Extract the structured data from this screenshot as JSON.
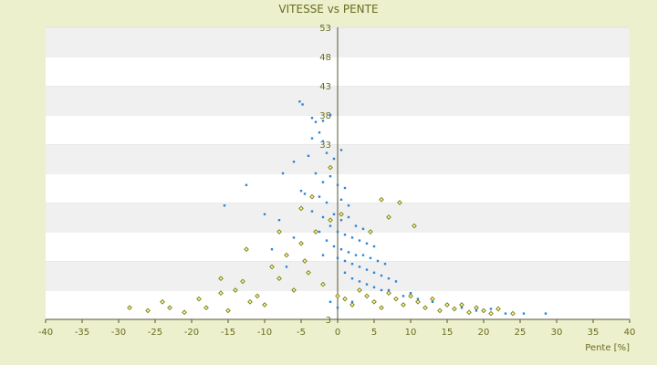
{
  "chart_data": {
    "type": "scatter",
    "title": "VITESSE vs PENTE",
    "xlabel": "Pente [%]",
    "ylabel": "",
    "xlim": [
      -40,
      40
    ],
    "ylim": [
      3,
      53
    ],
    "x_ticks": [
      -40,
      -35,
      -30,
      -25,
      -20,
      -15,
      -10,
      -5,
      0,
      5,
      10,
      15,
      20,
      25,
      30,
      35,
      40
    ],
    "y_ticks": [
      3,
      8,
      13,
      18,
      23,
      28,
      33,
      38,
      43,
      48,
      53
    ],
    "y_tick_labels_shown": [
      "3",
      "",
      "",
      "",
      "",
      "",
      "33",
      "38",
      "43",
      "48",
      "53"
    ],
    "grid": "horizontal alternating bands",
    "legend": "none",
    "colors": {
      "background": "#ecf0cd",
      "band_light": "#ffffff",
      "band_dark": "#f0f0f0",
      "text": "#6b6b1e",
      "axis": "#555533"
    },
    "series": [
      {
        "color": "#2b86d8",
        "marker": "small dot",
        "points": [
          [
            -5.2,
            40.3
          ],
          [
            -4.8,
            39.8
          ],
          [
            -3.5,
            37.5
          ],
          [
            -3.0,
            36.8
          ],
          [
            -2.5,
            35.0
          ],
          [
            -2.0,
            33.5
          ],
          [
            -4.0,
            31.0
          ],
          [
            -6.0,
            30.0
          ],
          [
            -1.5,
            31.5
          ],
          [
            -0.5,
            30.5
          ],
          [
            0.5,
            32.0
          ],
          [
            -3.0,
            28.0
          ],
          [
            -2.0,
            26.5
          ],
          [
            -1.0,
            27.5
          ],
          [
            0.0,
            26.0
          ],
          [
            1.0,
            25.5
          ],
          [
            -4.5,
            24.5
          ],
          [
            -2.5,
            24.0
          ],
          [
            -1.5,
            23.0
          ],
          [
            0.5,
            23.5
          ],
          [
            1.5,
            22.5
          ],
          [
            -12.5,
            26.0
          ],
          [
            -15.5,
            22.5
          ],
          [
            -10.0,
            21.0
          ],
          [
            -8.0,
            20.0
          ],
          [
            -3.5,
            21.5
          ],
          [
            -2.0,
            20.5
          ],
          [
            -0.5,
            21.0
          ],
          [
            0.5,
            20.0
          ],
          [
            1.5,
            20.5
          ],
          [
            2.5,
            19.0
          ],
          [
            3.5,
            18.5
          ],
          [
            -1.0,
            19.0
          ],
          [
            -2.5,
            18.0
          ],
          [
            0.0,
            18.0
          ],
          [
            1.0,
            17.5
          ],
          [
            2.0,
            17.0
          ],
          [
            3.0,
            16.5
          ],
          [
            4.0,
            16.0
          ],
          [
            5.0,
            15.5
          ],
          [
            -1.5,
            16.5
          ],
          [
            -0.5,
            15.5
          ],
          [
            0.5,
            15.0
          ],
          [
            1.5,
            14.5
          ],
          [
            2.5,
            14.0
          ],
          [
            3.5,
            14.0
          ],
          [
            4.5,
            13.5
          ],
          [
            5.5,
            13.0
          ],
          [
            6.5,
            12.5
          ],
          [
            -2.0,
            14.0
          ],
          [
            0.0,
            13.5
          ],
          [
            1.0,
            13.0
          ],
          [
            2.0,
            12.5
          ],
          [
            3.0,
            12.0
          ],
          [
            4.0,
            11.5
          ],
          [
            5.0,
            11.0
          ],
          [
            6.0,
            10.5
          ],
          [
            7.0,
            10.0
          ],
          [
            8.0,
            9.5
          ],
          [
            1.0,
            11.0
          ],
          [
            2.0,
            10.0
          ],
          [
            3.0,
            9.5
          ],
          [
            4.0,
            9.0
          ],
          [
            5.0,
            8.5
          ],
          [
            6.0,
            8.0
          ],
          [
            7.0,
            8.0
          ],
          [
            9.0,
            7.0
          ],
          [
            10.0,
            7.5
          ],
          [
            11.0,
            6.5
          ],
          [
            13.0,
            6.0
          ],
          [
            15.0,
            5.5
          ],
          [
            17.0,
            5.0
          ],
          [
            19.0,
            4.5
          ],
          [
            21.0,
            4.8
          ],
          [
            23.0,
            4.0
          ],
          [
            25.5,
            4.0
          ],
          [
            28.5,
            4.0
          ],
          [
            -1.0,
            6.0
          ],
          [
            0.0,
            5.0
          ],
          [
            2.0,
            6.0
          ],
          [
            -7.0,
            12.0
          ],
          [
            -9.0,
            15.0
          ],
          [
            -6.0,
            17.0
          ],
          [
            -5.0,
            25.0
          ],
          [
            -7.5,
            28.0
          ],
          [
            -3.5,
            34.0
          ],
          [
            -1.0,
            38.0
          ],
          [
            -2.0,
            37.0
          ]
        ]
      },
      {
        "color": "#787818",
        "marker": "small hollow diamond",
        "points": [
          [
            -28.5,
            5.0
          ],
          [
            -26.0,
            4.5
          ],
          [
            -24.0,
            6.0
          ],
          [
            -23.0,
            5.0
          ],
          [
            -21.0,
            4.2
          ],
          [
            -19.0,
            6.5
          ],
          [
            -18.0,
            5.0
          ],
          [
            -16.0,
            7.5
          ],
          [
            -15.0,
            4.5
          ],
          [
            -14.0,
            8.0
          ],
          [
            -13.0,
            9.5
          ],
          [
            -12.0,
            6.0
          ],
          [
            -11.0,
            7.0
          ],
          [
            -10.0,
            5.5
          ],
          [
            -9.0,
            12.0
          ],
          [
            -8.0,
            10.0
          ],
          [
            -7.0,
            14.0
          ],
          [
            -6.0,
            8.0
          ],
          [
            -5.0,
            16.0
          ],
          [
            -4.0,
            11.0
          ],
          [
            -3.0,
            18.0
          ],
          [
            -2.0,
            9.0
          ],
          [
            -1.0,
            20.0
          ],
          [
            0.0,
            7.0
          ],
          [
            1.0,
            6.5
          ],
          [
            2.0,
            5.5
          ],
          [
            3.0,
            8.0
          ],
          [
            4.0,
            7.0
          ],
          [
            5.0,
            6.0
          ],
          [
            6.0,
            5.0
          ],
          [
            7.0,
            7.5
          ],
          [
            8.0,
            6.5
          ],
          [
            9.0,
            5.5
          ],
          [
            10.0,
            7.0
          ],
          [
            11.0,
            6.0
          ],
          [
            12.0,
            5.0
          ],
          [
            13.0,
            6.5
          ],
          [
            14.0,
            4.5
          ],
          [
            15.0,
            5.5
          ],
          [
            16.0,
            4.8
          ],
          [
            17.0,
            5.5
          ],
          [
            18.0,
            4.2
          ],
          [
            19.0,
            5.0
          ],
          [
            20.0,
            4.5
          ],
          [
            21.0,
            4.0
          ],
          [
            22.0,
            4.8
          ],
          [
            24.0,
            4.0
          ],
          [
            -5.0,
            22.0
          ],
          [
            -3.5,
            24.0
          ],
          [
            -8.0,
            18.0
          ],
          [
            -12.5,
            15.0
          ],
          [
            -16.0,
            10.0
          ],
          [
            -1.0,
            29.0
          ],
          [
            0.5,
            21.0
          ],
          [
            6.0,
            23.5
          ],
          [
            8.5,
            23.0
          ],
          [
            7.0,
            20.5
          ],
          [
            4.5,
            18.0
          ],
          [
            10.5,
            19.0
          ],
          [
            -4.5,
            13.0
          ]
        ]
      }
    ]
  }
}
